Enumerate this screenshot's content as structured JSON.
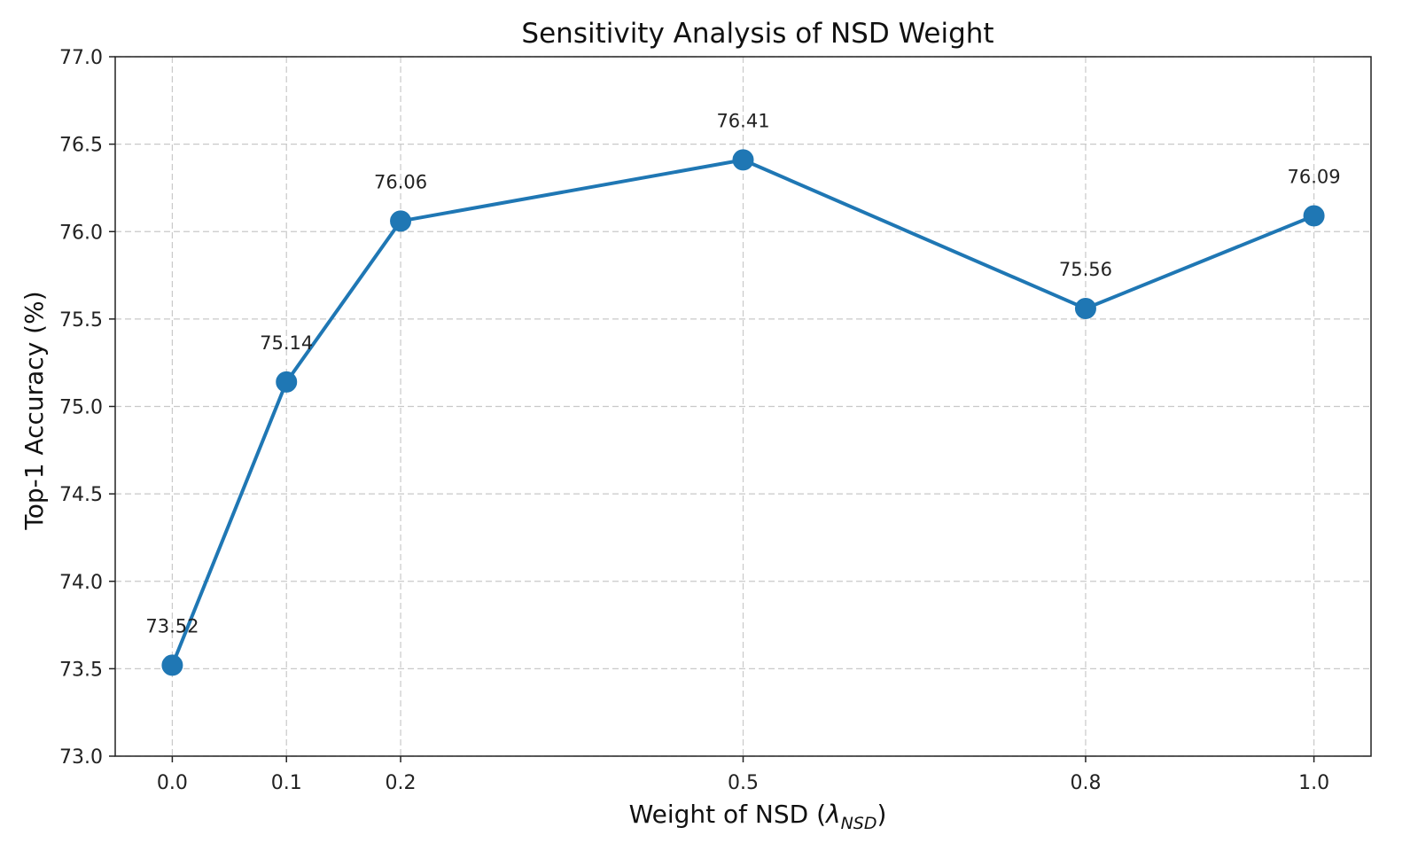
{
  "chart_data": {
    "type": "line",
    "title": "Sensitivity Analysis of NSD Weight",
    "xlabel": "Weight of NSD (",
    "xlabel_symbol": "λ",
    "xlabel_subscript": "NSD",
    "xlabel_suffix": ")",
    "ylabel": "Top-1 Accuracy (%)",
    "x": [
      0.0,
      0.1,
      0.2,
      0.5,
      0.8,
      1.0
    ],
    "x_tick_labels": [
      "0.0",
      "0.1",
      "0.2",
      "0.5",
      "0.8",
      "1.0"
    ],
    "series": [
      {
        "name": "Top-1 Accuracy",
        "values": [
          73.52,
          75.14,
          76.06,
          76.41,
          75.56,
          76.09
        ],
        "labels": [
          "73.52",
          "75.14",
          "76.06",
          "76.41",
          "75.56",
          "76.09"
        ],
        "color": "#1f77b4"
      }
    ],
    "xlim": [
      -0.05,
      1.05
    ],
    "ylim": [
      73.0,
      77.0
    ],
    "y_ticks": [
      73.0,
      73.5,
      74.0,
      74.5,
      75.0,
      75.5,
      76.0,
      76.5,
      77.0
    ],
    "y_tick_labels": [
      "73.0",
      "73.5",
      "74.0",
      "74.5",
      "75.0",
      "75.5",
      "76.0",
      "76.5",
      "77.0"
    ],
    "grid": true,
    "legend": "none"
  }
}
